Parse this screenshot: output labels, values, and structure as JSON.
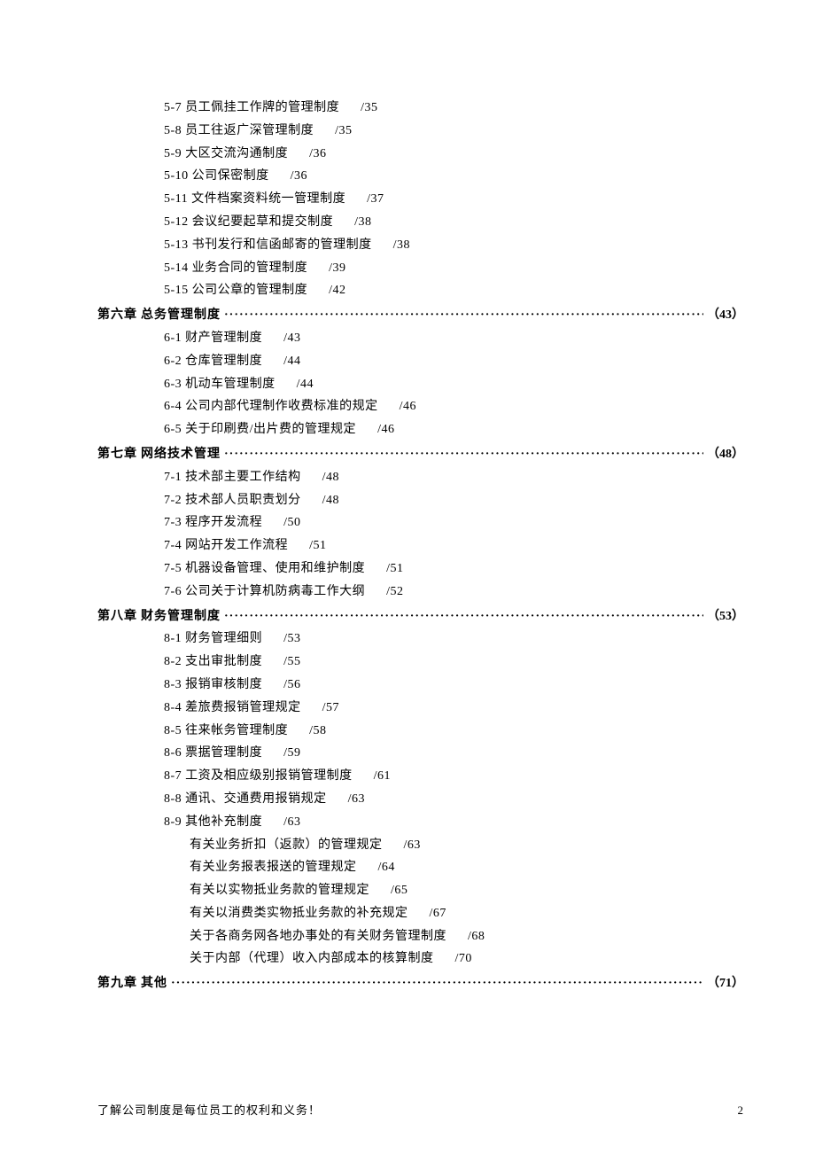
{
  "toc": [
    {
      "type": "item",
      "code": "5-7",
      "title": "员工佩挂工作牌的管理制度",
      "page": "/35"
    },
    {
      "type": "item",
      "code": "5-8",
      "title": "员工往返广深管理制度",
      "page": "/35"
    },
    {
      "type": "item",
      "code": "5-9",
      "title": "大区交流沟通制度",
      "page": "/36"
    },
    {
      "type": "item",
      "code": "5-10",
      "title": "公司保密制度",
      "page": "/36"
    },
    {
      "type": "item",
      "code": "5-11",
      "title": "文件档案资料统一管理制度",
      "page": "/37"
    },
    {
      "type": "item",
      "code": "5-12",
      "title": "会议纪要起草和提交制度",
      "page": "/38"
    },
    {
      "type": "item",
      "code": "5-13",
      "title": "书刊发行和信函邮寄的管理制度",
      "page": "/38"
    },
    {
      "type": "item",
      "code": "5-14",
      "title": "业务合同的管理制度",
      "page": "/39"
    },
    {
      "type": "item",
      "code": "5-15",
      "title": "公司公章的管理制度",
      "page": "/42"
    },
    {
      "type": "chapter",
      "label": "第六章",
      "title": "总务管理制度",
      "page": "（43）"
    },
    {
      "type": "item",
      "code": "6-1",
      "title": "财产管理制度",
      "page": "/43"
    },
    {
      "type": "item",
      "code": "6-2",
      "title": "仓库管理制度",
      "page": "/44"
    },
    {
      "type": "item",
      "code": "6-3",
      "title": "机动车管理制度",
      "page": "/44"
    },
    {
      "type": "item",
      "code": "6-4",
      "title": "公司内部代理制作收费标准的规定",
      "page": "/46"
    },
    {
      "type": "item",
      "code": "6-5",
      "title": "关于印刷费/出片费的管理规定",
      "page": "/46"
    },
    {
      "type": "chapter",
      "label": "第七章",
      "title": "网络技术管理",
      "page": "（48）"
    },
    {
      "type": "item",
      "code": "7-1",
      "title": "技术部主要工作结构",
      "page": "/48"
    },
    {
      "type": "item",
      "code": "7-2",
      "title": "技术部人员职责划分",
      "page": "/48"
    },
    {
      "type": "item",
      "code": "7-3",
      "title": "程序开发流程",
      "page": "/50"
    },
    {
      "type": "item",
      "code": "7-4",
      "title": "网站开发工作流程",
      "page": "/51"
    },
    {
      "type": "item",
      "code": "7-5",
      "title": "机器设备管理、使用和维护制度",
      "page": "/51"
    },
    {
      "type": "item",
      "code": "7-6",
      "title": "公司关于计算机防病毒工作大纲",
      "page": "/52"
    },
    {
      "type": "chapter",
      "label": "第八章",
      "title": "财务管理制度",
      "page": "（53）"
    },
    {
      "type": "item",
      "code": "8-1",
      "title": "财务管理细则",
      "page": "/53"
    },
    {
      "type": "item",
      "code": "8-2",
      "title": "支出审批制度",
      "page": "/55"
    },
    {
      "type": "item",
      "code": "8-3",
      "title": "报销审核制度",
      "page": "/56"
    },
    {
      "type": "item",
      "code": "8-4",
      "title": "差旅费报销管理规定",
      "page": "/57"
    },
    {
      "type": "item",
      "code": "8-5",
      "title": "往来帐务管理制度",
      "page": "/58"
    },
    {
      "type": "item",
      "code": "8-6",
      "title": "票据管理制度",
      "page": "/59"
    },
    {
      "type": "item",
      "code": "8-7",
      "title": "工资及相应级别报销管理制度",
      "page": "/61"
    },
    {
      "type": "item",
      "code": "8-8",
      "title": "通讯、交通费用报销规定",
      "page": "/63"
    },
    {
      "type": "item",
      "code": "8-9",
      "title": "其他补充制度",
      "page": "/63"
    },
    {
      "type": "subitem",
      "title": "有关业务折扣（返款）的管理规定",
      "page": "/63"
    },
    {
      "type": "subitem",
      "title": "有关业务报表报送的管理规定",
      "page": "/64"
    },
    {
      "type": "subitem",
      "title": "有关以实物抵业务款的管理规定",
      "page": "/65"
    },
    {
      "type": "subitem",
      "title": "有关以消费类实物抵业务款的补充规定",
      "page": "/67"
    },
    {
      "type": "subitem",
      "title": "关于各商务网各地办事处的有关财务管理制度",
      "page": "/68"
    },
    {
      "type": "subitem",
      "title": "关于内部（代理）收入内部成本的核算制度",
      "page": "/70"
    },
    {
      "type": "chapter",
      "label": "第九章",
      "title": "其他",
      "page": "（71）"
    }
  ],
  "footer": {
    "text": "了解公司制度是每位员工的权利和义务！",
    "pageNumber": "2"
  }
}
